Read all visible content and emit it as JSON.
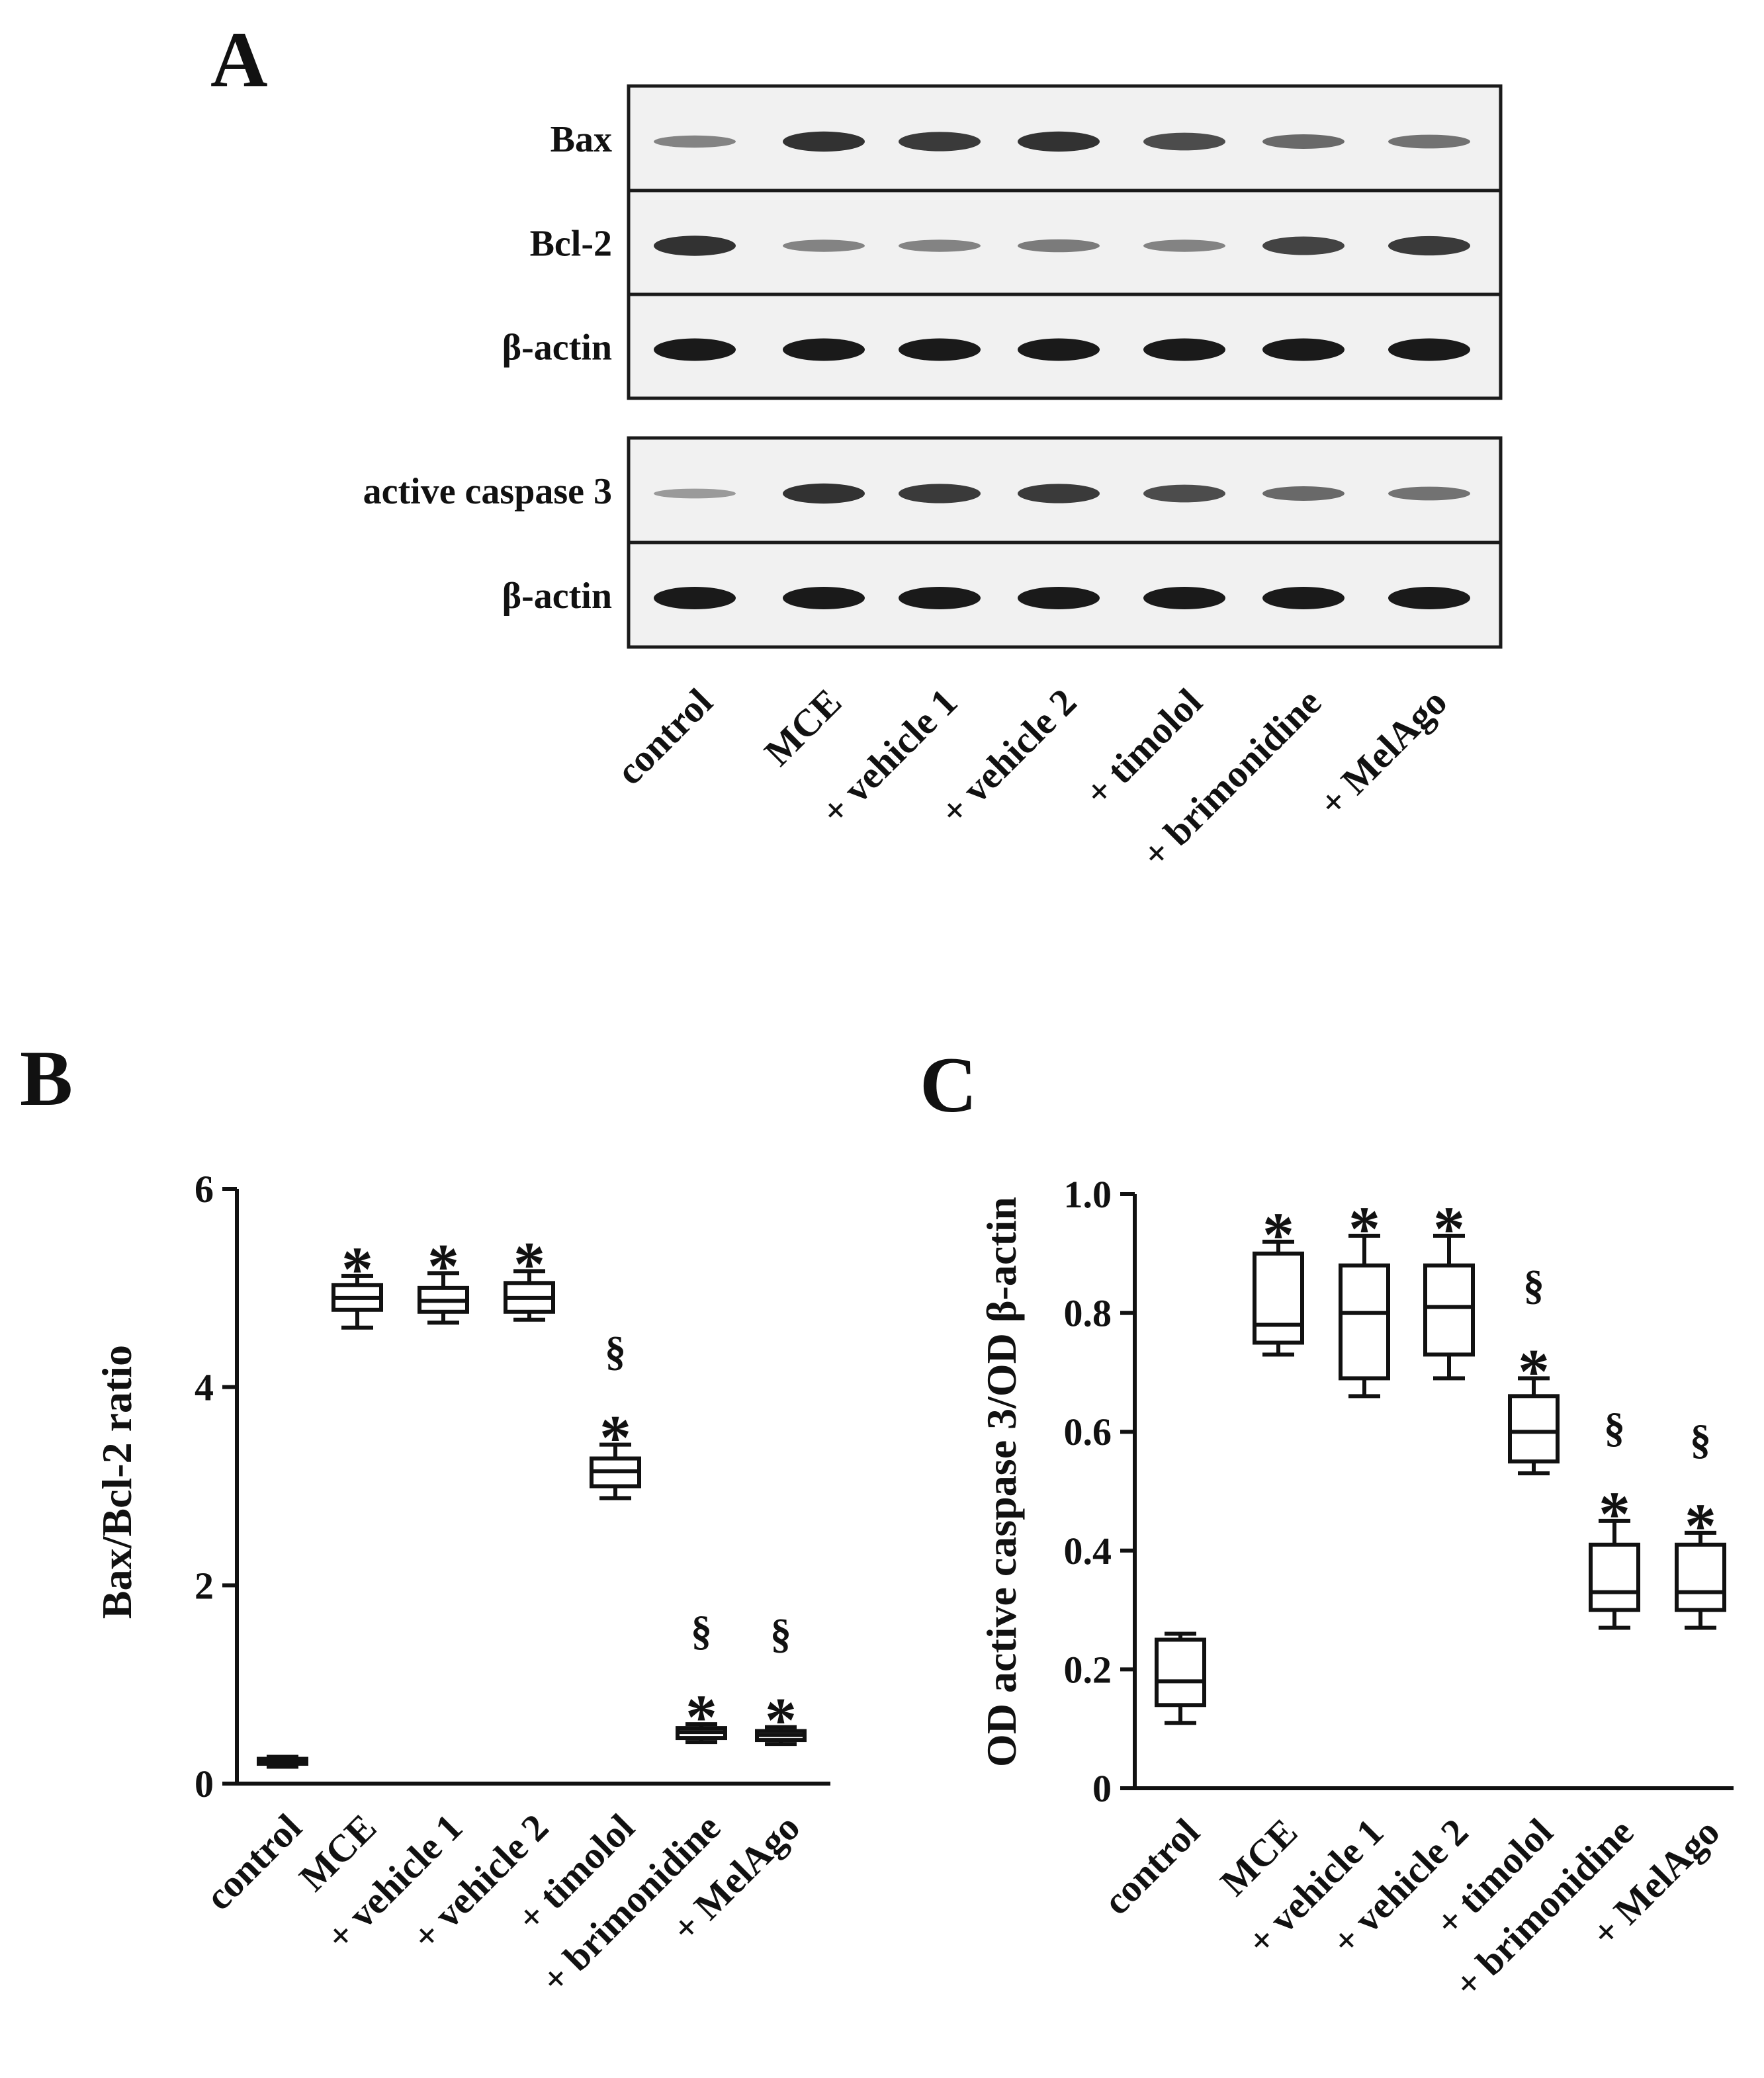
{
  "colors": {
    "ink": "#111111",
    "blot_bg": "#f1f1f1",
    "band": "#1a1a1a"
  },
  "panels": {
    "a": "A",
    "b": "B",
    "c": "C"
  },
  "lanes": [
    "control",
    "MCE",
    "+ vehicle 1",
    "+ vehicle 2",
    "+ timolol",
    "+ brimonidine",
    "+ MelAgo"
  ],
  "blot": {
    "strips": [
      {
        "label": "Bax",
        "intensity": [
          0.35,
          0.85,
          0.8,
          0.85,
          0.7,
          0.5,
          0.45
        ]
      },
      {
        "label": "Bcl-2",
        "intensity": [
          0.85,
          0.35,
          0.35,
          0.4,
          0.35,
          0.75,
          0.8
        ]
      },
      {
        "label": "β-actin",
        "intensity": [
          1,
          1,
          1,
          1,
          1,
          1,
          1
        ]
      },
      {
        "label": "active caspase 3",
        "intensity": [
          0.2,
          0.85,
          0.8,
          0.8,
          0.7,
          0.5,
          0.45
        ]
      },
      {
        "label": "β-actin",
        "intensity": [
          1,
          1,
          1,
          1,
          1,
          1,
          1
        ]
      }
    ]
  },
  "chart_data": [
    {
      "panel": "B",
      "type": "box",
      "categories": [
        "control",
        "MCE",
        "+ vehicle 1",
        "+ vehicle 2",
        "+ timolol",
        "+ brimonidine",
        "+ MelAgo"
      ],
      "ylabel": "Bax/Bcl-2 ratio",
      "ylim": [
        0,
        6
      ],
      "yticks": [
        "0",
        "2",
        "4",
        "6"
      ],
      "boxes": [
        {
          "min": 0.17,
          "q1": 0.2,
          "median": 0.22,
          "q3": 0.25,
          "max": 0.27
        },
        {
          "min": 4.6,
          "q1": 4.78,
          "median": 4.9,
          "q3": 5.03,
          "max": 5.12
        },
        {
          "min": 4.65,
          "q1": 4.76,
          "median": 4.87,
          "q3": 5.0,
          "max": 5.15
        },
        {
          "min": 4.68,
          "q1": 4.76,
          "median": 4.9,
          "q3": 5.05,
          "max": 5.17
        },
        {
          "min": 2.88,
          "q1": 3.0,
          "median": 3.15,
          "q3": 3.28,
          "max": 3.42
        },
        {
          "min": 0.42,
          "q1": 0.46,
          "median": 0.52,
          "q3": 0.56,
          "max": 0.6
        },
        {
          "min": 0.4,
          "q1": 0.44,
          "median": 0.49,
          "q3": 0.53,
          "max": 0.57
        }
      ],
      "annotations": [
        "",
        "*",
        "*",
        "*",
        "*\n§",
        "*\n§",
        "*\n§"
      ]
    },
    {
      "panel": "C",
      "type": "box",
      "categories": [
        "control",
        "MCE",
        "+ vehicle 1",
        "+ vehicle 2",
        "+ timolol",
        "+ brimonidine",
        "+ MelAgo"
      ],
      "ylabel": "OD active caspase 3/OD β-actin",
      "ylim": [
        0,
        1.0
      ],
      "yticks": [
        "0",
        "0.2",
        "0.4",
        "0.6",
        "0.8",
        "1.0"
      ],
      "boxes": [
        {
          "min": 0.11,
          "q1": 0.14,
          "median": 0.18,
          "q3": 0.25,
          "max": 0.26
        },
        {
          "min": 0.73,
          "q1": 0.75,
          "median": 0.78,
          "q3": 0.9,
          "max": 0.92
        },
        {
          "min": 0.66,
          "q1": 0.69,
          "median": 0.8,
          "q3": 0.88,
          "max": 0.93
        },
        {
          "min": 0.69,
          "q1": 0.73,
          "median": 0.81,
          "q3": 0.88,
          "max": 0.93
        },
        {
          "min": 0.53,
          "q1": 0.55,
          "median": 0.6,
          "q3": 0.66,
          "max": 0.69
        },
        {
          "min": 0.27,
          "q1": 0.3,
          "median": 0.33,
          "q3": 0.41,
          "max": 0.45
        },
        {
          "min": 0.27,
          "q1": 0.3,
          "median": 0.33,
          "q3": 0.41,
          "max": 0.43
        }
      ],
      "annotations": [
        "",
        "*",
        "*",
        "*",
        "*\n§",
        "*\n§",
        "*\n§"
      ]
    }
  ]
}
